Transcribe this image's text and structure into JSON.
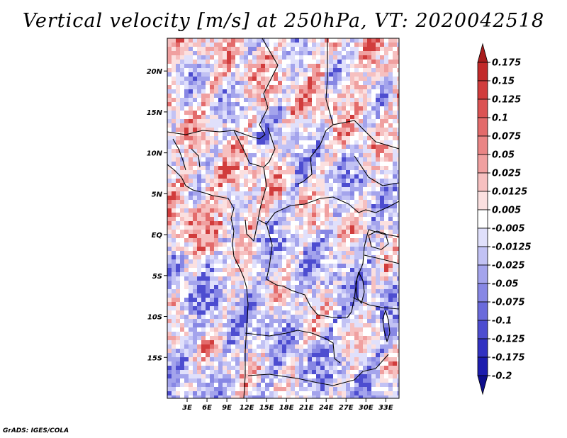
{
  "title": "Vertical velocity [m/s] at 250hPa, VT: 2020042518",
  "credit": "GrADS: IGES/COLA",
  "map": {
    "lon_range": [
      0,
      35
    ],
    "lat_range": [
      -20,
      24
    ],
    "lat_ticks": [
      {
        "value": 20,
        "label": "20N"
      },
      {
        "value": 15,
        "label": "15N"
      },
      {
        "value": 10,
        "label": "10N"
      },
      {
        "value": 5,
        "label": "5N"
      },
      {
        "value": 0,
        "label": "EQ"
      },
      {
        "value": -5,
        "label": "5S"
      },
      {
        "value": -10,
        "label": "10S"
      },
      {
        "value": -15,
        "label": "15S"
      }
    ],
    "lon_ticks": [
      {
        "value": 3,
        "label": "3E"
      },
      {
        "value": 6,
        "label": "6E"
      },
      {
        "value": 9,
        "label": "9E"
      },
      {
        "value": 12,
        "label": "12E"
      },
      {
        "value": 15,
        "label": "15E"
      },
      {
        "value": 18,
        "label": "18E"
      },
      {
        "value": 21,
        "label": "21E"
      },
      {
        "value": 24,
        "label": "24E"
      },
      {
        "value": 27,
        "label": "27E"
      },
      {
        "value": 30,
        "label": "30E"
      },
      {
        "value": 33,
        "label": "33E"
      }
    ]
  },
  "colorbar": {
    "labels": [
      "0.175",
      "0.15",
      "0.125",
      "0.1",
      "0.075",
      "0.05",
      "0.025",
      "0.0125",
      "0.005",
      "-0.005",
      "-0.0125",
      "-0.025",
      "-0.05",
      "-0.075",
      "-0.1",
      "-0.125",
      "-0.175",
      "-0.2"
    ],
    "colors": [
      "#a81d1d",
      "#c22a2a",
      "#d13c3c",
      "#db5353",
      "#e36b6b",
      "#ea8585",
      "#f0a0a0",
      "#f6c0c0",
      "#fbe0e0",
      "#ffffff",
      "#e0e0fb",
      "#c2c2f4",
      "#a4a4ec",
      "#8787e4",
      "#6a6adb",
      "#4d4dd0",
      "#3232c2",
      "#1c1cae",
      "#0e0e8c"
    ]
  }
}
